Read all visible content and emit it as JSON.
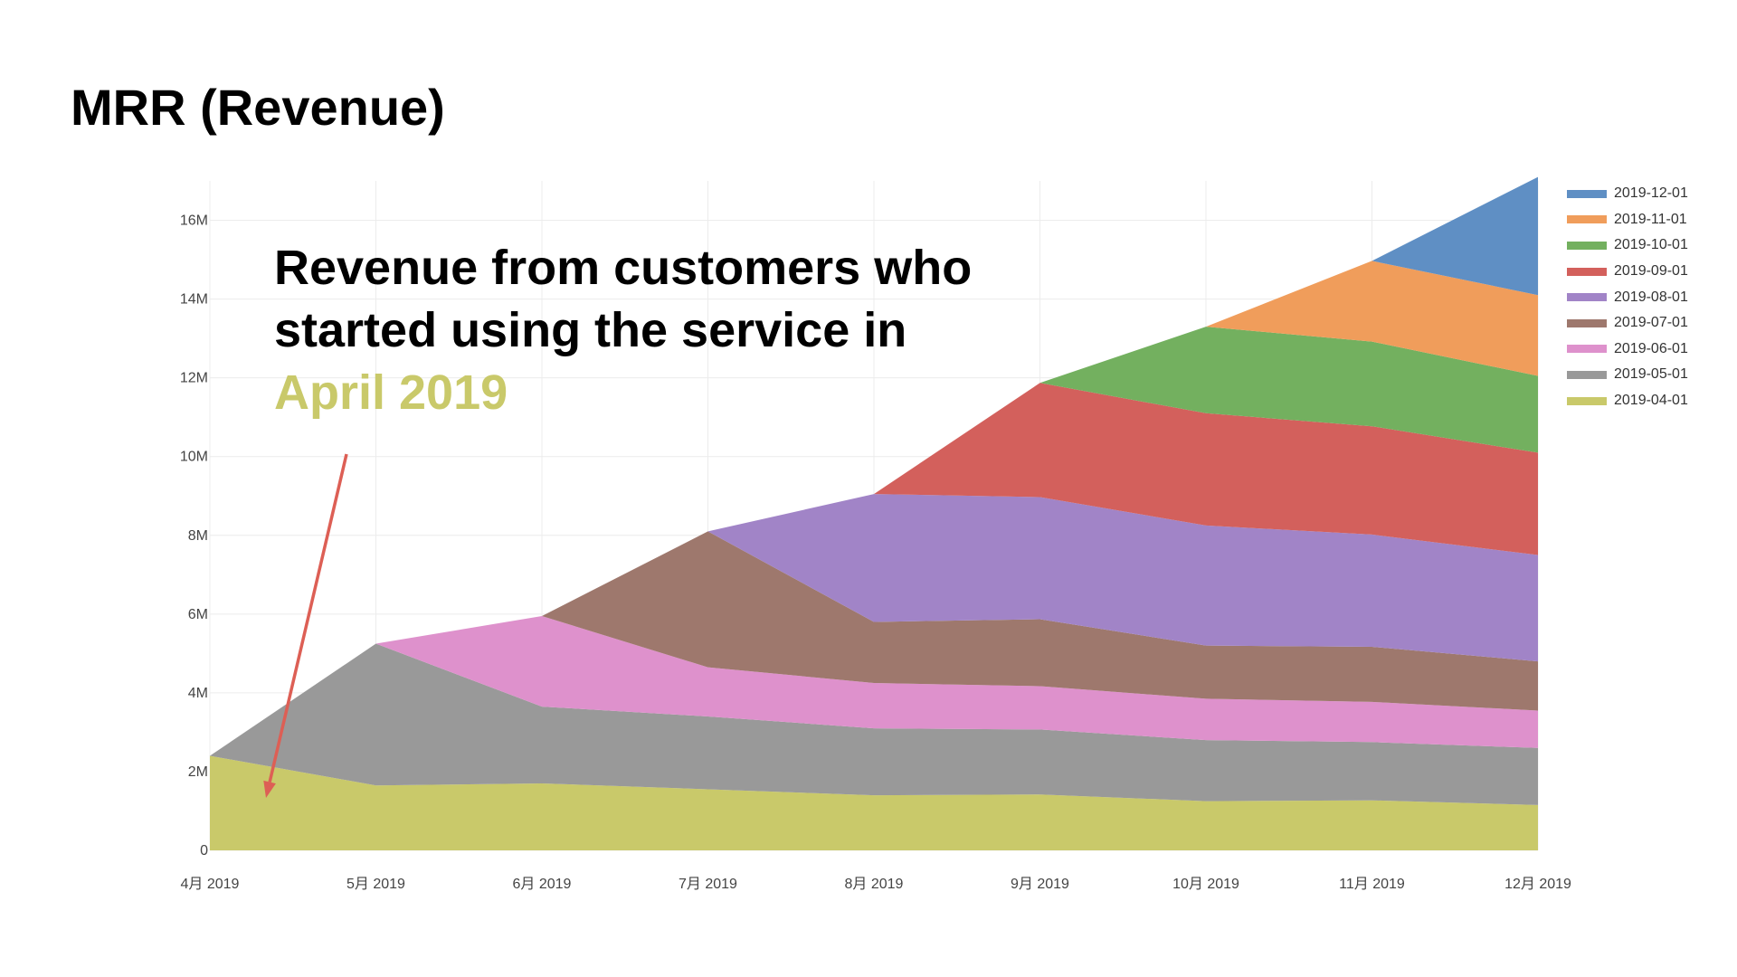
{
  "page": {
    "title": "MRR (Revenue)"
  },
  "annotation": {
    "line1": "Revenue from customers who",
    "line2": "started using the service in",
    "highlight": "April 2019",
    "highlight_color": "#c9c96a",
    "arrow_color": "#dd5f55"
  },
  "chart_data": {
    "type": "area",
    "stacked": true,
    "title": "MRR (Revenue)",
    "categories": [
      "4月 2019",
      "5月 2019",
      "6月 2019",
      "7月 2019",
      "8月 2019",
      "9月 2019",
      "10月 2019",
      "11月 2019",
      "12月 2019"
    ],
    "ylim": [
      0,
      17
    ],
    "yticks": [
      0,
      2,
      4,
      6,
      8,
      10,
      12,
      14,
      16
    ],
    "ytick_labels": [
      "0",
      "2M",
      "4M",
      "6M",
      "8M",
      "10M",
      "12M",
      "14M",
      "16M"
    ],
    "unit": "M",
    "grid": true,
    "legend_position": "top-right",
    "series": [
      {
        "name": "2019-04-01",
        "color": "#c9c96a",
        "values": [
          2.4,
          1.65,
          1.7,
          1.55,
          1.4,
          1.42,
          1.25,
          1.27,
          1.15
        ]
      },
      {
        "name": "2019-05-01",
        "color": "#999999",
        "values": [
          0,
          3.6,
          1.95,
          1.85,
          1.7,
          1.65,
          1.55,
          1.48,
          1.45
        ]
      },
      {
        "name": "2019-06-01",
        "color": "#de91cc",
        "values": [
          0,
          0,
          2.3,
          1.25,
          1.15,
          1.1,
          1.05,
          1.02,
          0.95
        ]
      },
      {
        "name": "2019-07-01",
        "color": "#9e786d",
        "values": [
          0,
          0,
          0,
          3.45,
          1.55,
          1.7,
          1.35,
          1.4,
          1.25
        ]
      },
      {
        "name": "2019-08-01",
        "color": "#a184c7",
        "values": [
          0,
          0,
          0,
          0,
          3.25,
          3.1,
          3.05,
          2.85,
          2.7
        ]
      },
      {
        "name": "2019-09-01",
        "color": "#d3605c",
        "values": [
          0,
          0,
          0,
          0,
          0,
          2.9,
          2.85,
          2.75,
          2.6
        ]
      },
      {
        "name": "2019-10-01",
        "color": "#73b05f",
        "values": [
          0,
          0,
          0,
          0,
          0,
          0,
          2.2,
          2.15,
          1.95
        ]
      },
      {
        "name": "2019-11-01",
        "color": "#f09d5b",
        "values": [
          0,
          0,
          0,
          0,
          0,
          0,
          0,
          2.05,
          2.05
        ]
      },
      {
        "name": "2019-12-01",
        "color": "#5f8fc4",
        "values": [
          0,
          0,
          0,
          0,
          0,
          0,
          0,
          0,
          3.0
        ]
      }
    ]
  }
}
